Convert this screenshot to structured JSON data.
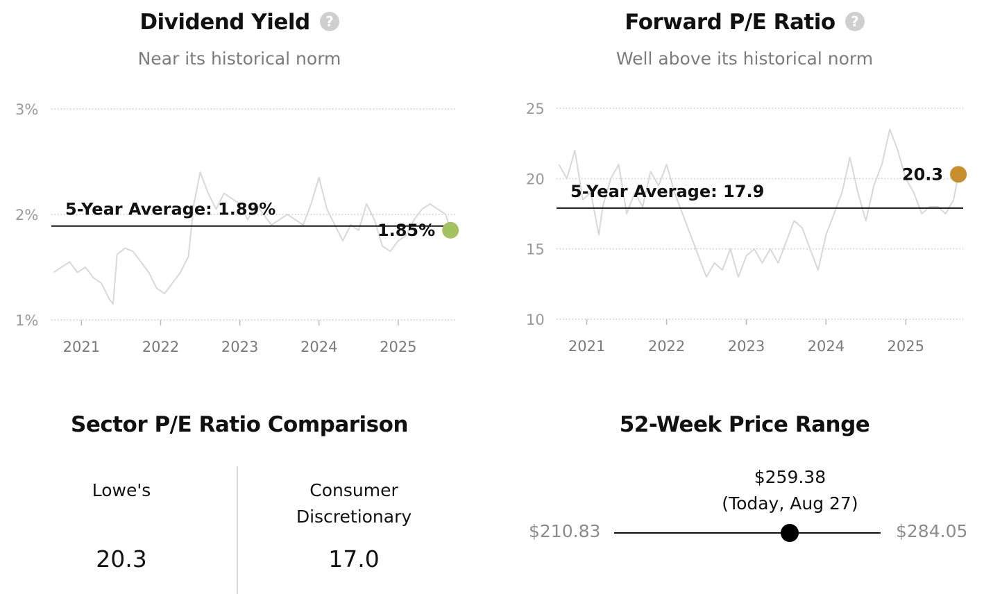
{
  "dividend": {
    "title": "Dividend Yield",
    "subtitle": "Near its historical norm",
    "help_icon": "question-icon",
    "dot_color": "#a5c261"
  },
  "pe": {
    "title": "Forward P/E Ratio",
    "subtitle": "Well above its historical norm",
    "help_icon": "question-icon",
    "dot_color": "#c98e2c"
  },
  "sector": {
    "title": "Sector P/E Ratio Comparison",
    "left_name": "Lowe's",
    "left_value": "20.3",
    "right_name_line1": "Consumer",
    "right_name_line2": "Discretionary",
    "right_value": "17.0"
  },
  "range": {
    "title": "52-Week Price Range",
    "low": "$210.83",
    "high": "$284.05",
    "current": "$259.38",
    "current_note": "(Today, Aug 27)",
    "position_fraction": 0.66
  },
  "chart_data": [
    {
      "type": "line",
      "title": "Dividend Yield",
      "subtitle": "Near its historical norm",
      "unit": "%",
      "yticks": [
        "1%",
        "2%",
        "3%"
      ],
      "ytick_values": [
        1,
        2,
        3
      ],
      "ylim": [
        1,
        3
      ],
      "xticks": [
        "2021",
        "2022",
        "2023",
        "2024",
        "2025"
      ],
      "xtick_values": [
        2021,
        2022,
        2023,
        2024,
        2025
      ],
      "xlim": [
        2020.62,
        2025.72
      ],
      "average": 1.89,
      "average_label": "5-Year Average: 1.89%",
      "current": 1.85,
      "current_label": "1.85%",
      "line_color": "#d8d8d8",
      "grid": "dotted horizontal",
      "series": [
        {
          "x": [
            2020.65,
            2020.75,
            2020.85,
            2020.95,
            2021.05,
            2021.15,
            2021.25,
            2021.35,
            2021.4,
            2021.45,
            2021.55,
            2021.65,
            2021.75,
            2021.85,
            2021.95,
            2022.05,
            2022.15,
            2022.25,
            2022.35,
            2022.42,
            2022.5,
            2022.6,
            2022.7,
            2022.8,
            2022.9,
            2023.0,
            2023.1,
            2023.2,
            2023.3,
            2023.4,
            2023.5,
            2023.6,
            2023.7,
            2023.8,
            2023.9,
            2024.0,
            2024.1,
            2024.2,
            2024.3,
            2024.4,
            2024.5,
            2024.6,
            2024.7,
            2024.8,
            2024.9,
            2025.0,
            2025.1,
            2025.2,
            2025.3,
            2025.4,
            2025.5,
            2025.6,
            2025.66
          ],
          "y": [
            1.45,
            1.5,
            1.55,
            1.45,
            1.5,
            1.4,
            1.35,
            1.2,
            1.15,
            1.62,
            1.68,
            1.65,
            1.55,
            1.45,
            1.3,
            1.25,
            1.35,
            1.45,
            1.6,
            2.1,
            2.4,
            2.2,
            2.05,
            2.2,
            2.15,
            2.1,
            1.95,
            2.1,
            2.0,
            1.9,
            1.95,
            2.0,
            1.95,
            1.9,
            2.1,
            2.35,
            2.05,
            1.9,
            1.75,
            1.9,
            1.85,
            2.1,
            1.95,
            1.7,
            1.65,
            1.75,
            1.8,
            1.95,
            2.05,
            2.1,
            2.05,
            2.0,
            1.85
          ]
        }
      ]
    },
    {
      "type": "line",
      "title": "Forward P/E Ratio",
      "subtitle": "Well above its historical norm",
      "yticks": [
        "10",
        "15",
        "20",
        "25"
      ],
      "ytick_values": [
        10,
        15,
        20,
        25
      ],
      "ylim": [
        10,
        25
      ],
      "xticks": [
        "2021",
        "2022",
        "2023",
        "2024",
        "2025"
      ],
      "xtick_values": [
        2021,
        2022,
        2023,
        2024,
        2025
      ],
      "xlim": [
        2020.62,
        2025.72
      ],
      "average": 17.9,
      "average_label": "5-Year Average: 17.9",
      "current": 20.3,
      "current_label": "20.3",
      "line_color": "#d8d8d8",
      "grid": "dotted horizontal",
      "series": [
        {
          "x": [
            2020.65,
            2020.75,
            2020.85,
            2020.95,
            2021.05,
            2021.15,
            2021.2,
            2021.3,
            2021.4,
            2021.5,
            2021.6,
            2021.7,
            2021.8,
            2021.9,
            2022.0,
            2022.1,
            2022.2,
            2022.3,
            2022.4,
            2022.5,
            2022.6,
            2022.7,
            2022.8,
            2022.9,
            2023.0,
            2023.1,
            2023.2,
            2023.3,
            2023.4,
            2023.5,
            2023.6,
            2023.7,
            2023.8,
            2023.9,
            2024.0,
            2024.1,
            2024.2,
            2024.3,
            2024.4,
            2024.5,
            2024.6,
            2024.7,
            2024.8,
            2024.9,
            2025.0,
            2025.1,
            2025.2,
            2025.3,
            2025.4,
            2025.5,
            2025.6,
            2025.66
          ],
          "y": [
            21.0,
            20.0,
            22.0,
            18.5,
            19.0,
            16.0,
            18.0,
            20.0,
            21.0,
            17.5,
            19.0,
            18.0,
            20.5,
            19.5,
            21.0,
            19.0,
            17.5,
            16.0,
            14.5,
            13.0,
            14.0,
            13.5,
            15.0,
            13.0,
            14.5,
            15.0,
            14.0,
            15.0,
            14.0,
            15.5,
            17.0,
            16.5,
            15.0,
            13.5,
            16.0,
            17.5,
            19.0,
            21.5,
            19.0,
            17.0,
            19.5,
            21.0,
            23.5,
            22.0,
            20.0,
            19.0,
            17.5,
            18.0,
            18.0,
            17.5,
            18.5,
            20.3
          ]
        }
      ]
    }
  ]
}
